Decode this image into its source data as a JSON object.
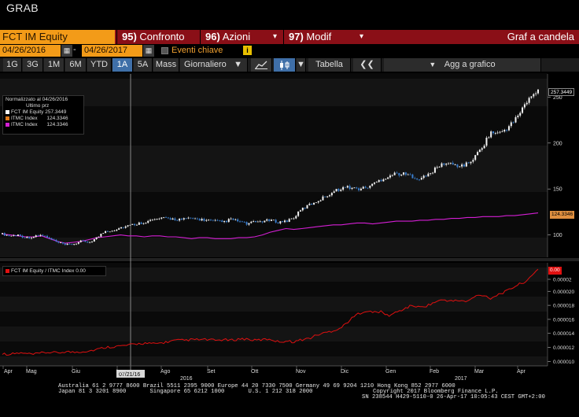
{
  "window": {
    "title": "GRAB"
  },
  "function_bar": {
    "ticker": "FCT IM Equity",
    "menus": [
      {
        "num": "95)",
        "label": "Confronto",
        "has_caret": false
      },
      {
        "num": "96)",
        "label": "Azioni",
        "has_caret": true
      },
      {
        "num": "97)",
        "label": "Modif",
        "has_caret": true
      }
    ],
    "chart_title": "Graf a candela"
  },
  "date_range": {
    "start": "04/26/2016",
    "end": "04/26/2017",
    "separator": "-",
    "events_label": "Eventi chiave"
  },
  "toolbar": {
    "periods": [
      "1G",
      "3G",
      "1M",
      "6M",
      "YTD",
      "1A",
      "5A",
      "Mass"
    ],
    "selected_period": "1A",
    "frequency": "Giornaliero",
    "table_label": "Tabella",
    "add_label": "Agg a grafico"
  },
  "legend_upper": {
    "header": "Normalizzato al 04/26/2016",
    "subheader": "Ultimo prz",
    "entries": [
      {
        "name": "FCT IM Equity",
        "value": "257.3449",
        "color": "#ffffff"
      },
      {
        "name": "ITMC Index",
        "value": "124.3346",
        "color": "#e07a1a"
      },
      {
        "name": "ITMC Index",
        "value": "124.3346",
        "color": "#d41fd4"
      }
    ]
  },
  "legend_lower": {
    "label": "FCT IM Equity / ITMC Index",
    "value": "0.00",
    "color": "#e01010"
  },
  "price_tags": {
    "fct": "257.3449",
    "itmc": "124.3346",
    "ratio": "0.00"
  },
  "crosshair": {
    "date_label": "07/21/16"
  },
  "chart_data": [
    {
      "type": "line",
      "panel": "upper",
      "y_ticks": [
        "250",
        "200",
        "150",
        "100"
      ],
      "ylim": [
        80,
        270
      ],
      "series": [
        {
          "name": "FCT IM Equity",
          "style": "candlestick",
          "values": [
            101,
            99,
            100,
            97,
            98,
            100,
            96,
            92,
            89,
            90,
            93,
            92,
            97,
            104,
            105,
            108,
            110,
            112,
            114,
            116,
            118,
            118,
            117,
            117,
            118,
            117,
            116,
            115,
            114,
            117,
            115,
            112,
            114,
            115,
            116,
            114,
            115,
            119,
            128,
            133,
            137,
            142,
            147,
            151,
            152,
            150,
            151,
            155,
            160,
            164,
            167,
            166,
            164,
            161,
            165,
            172,
            178,
            177,
            175,
            177,
            185,
            197,
            212,
            210,
            216,
            224,
            238,
            249,
            257
          ]
        },
        {
          "name": "ITMC Index",
          "color": "#d41fd4",
          "values": [
            101,
            100,
            99,
            98,
            98,
            99,
            96,
            93,
            91,
            92,
            93,
            95,
            97,
            98,
            99,
            100,
            99,
            99,
            98,
            99,
            99,
            98,
            98,
            97,
            96,
            97,
            97,
            96,
            96,
            96,
            97,
            97,
            98,
            100,
            103,
            105,
            107,
            106,
            107,
            108,
            109,
            110,
            111,
            111,
            112,
            113,
            113,
            112,
            113,
            114,
            115,
            115,
            115,
            116,
            116,
            117,
            117,
            118,
            118,
            119,
            119,
            120,
            120,
            120,
            121,
            121,
            122,
            123,
            124
          ]
        }
      ]
    },
    {
      "type": "line",
      "panel": "lower",
      "y_ticks": [
        "0.00002",
        "0.000020",
        "0.000018",
        "0.000016",
        "0.000014",
        "0.000012",
        "0.000010"
      ],
      "ylim": [
        9.7e-06,
        2.34e-05
      ],
      "series": [
        {
          "name": "FCT IM Equity / ITMC Index",
          "color": "#e01010",
          "values": [
            1.11e-05,
            1.1e-05,
            1.12e-05,
            1.11e-05,
            1.1e-05,
            1.12e-05,
            1.13e-05,
            1.12e-05,
            1.14e-05,
            1.13e-05,
            1.14e-05,
            1.15e-05,
            1.17e-05,
            1.2e-05,
            1.21e-05,
            1.22e-05,
            1.23e-05,
            1.25e-05,
            1.26e-05,
            1.25e-05,
            1.26e-05,
            1.28e-05,
            1.3e-05,
            1.3e-05,
            1.31e-05,
            1.31e-05,
            1.31e-05,
            1.3e-05,
            1.31e-05,
            1.3e-05,
            1.32e-05,
            1.32e-05,
            1.3e-05,
            1.31e-05,
            1.32e-05,
            1.28e-05,
            1.29e-05,
            1.28e-05,
            1.31e-05,
            1.33e-05,
            1.38e-05,
            1.41e-05,
            1.44e-05,
            1.48e-05,
            1.58e-05,
            1.67e-05,
            1.72e-05,
            1.7e-05,
            1.71e-05,
            1.65e-05,
            1.7e-05,
            1.75e-05,
            1.8e-05,
            1.77e-05,
            1.8e-05,
            1.85e-05,
            1.88e-05,
            1.86e-05,
            1.87e-05,
            1.85e-05,
            1.93e-05,
            1.95e-05,
            1.9e-05,
            1.96e-05,
            2e-05,
            2.07e-05,
            2.12e-05,
            2.19e-05,
            2.32e-05
          ]
        }
      ]
    }
  ],
  "x_axis": {
    "months": [
      "Apr",
      "Mag",
      "Giu",
      "Lug",
      "Ago",
      "Set",
      "Ott",
      "Nov",
      "Dic",
      "Gen",
      "Feb",
      "Mar",
      "Apr"
    ],
    "years": [
      "2016",
      "2017"
    ]
  },
  "footer": {
    "line1": "Australia 61 2 9777 8600 Brazil 5511 2395 9000 Europe 44 20 7330 7500 Germany 49 69 9204 1210 Hong Kong 852 2977 6000",
    "line2a": "Japan 81 3 3201 8900       Singapore 65 6212 1000       U.S. 1 212 318 2000",
    "line2b": "Copyright 2017 Bloomberg Finance L.P.",
    "line3": "SN 238544 H429-5110-0 26-Apr-17 10:05:43 CEST GMT+2:00"
  }
}
